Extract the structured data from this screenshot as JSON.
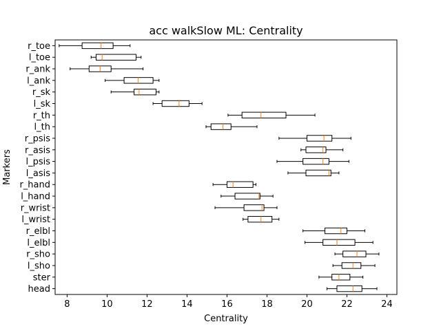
{
  "chart_data": {
    "type": "boxplot",
    "orientation": "horizontal",
    "title": "acc walkSlow ML: Centrality",
    "xlabel": "Centrality",
    "ylabel": "Markers",
    "xlim": [
      7.4,
      24.5
    ],
    "xticks": [
      8,
      10,
      12,
      14,
      16,
      18,
      20,
      22,
      24
    ],
    "grid": false,
    "colors": {
      "box": "#000000",
      "median": "#ff7f0e",
      "whisker": "#000000"
    },
    "categories": [
      "head",
      "ster",
      "l_sho",
      "r_sho",
      "l_elbl",
      "r_elbl",
      "l_wrist",
      "r_wrist",
      "l_hand",
      "r_hand",
      "l_asis",
      "l_psis",
      "r_asis",
      "r_psis",
      "l_th",
      "r_th",
      "l_sk",
      "r_sk",
      "l_ank",
      "r_ank",
      "l_toe",
      "r_toe"
    ],
    "boxes": [
      {
        "label": "head",
        "whislo": 21.0,
        "q1": 21.5,
        "med": 22.3,
        "q3": 22.75,
        "whishi": 23.5
      },
      {
        "label": "ster",
        "whislo": 20.6,
        "q1": 21.25,
        "med": 21.6,
        "q3": 22.15,
        "whishi": 22.8
      },
      {
        "label": "l_sho",
        "whislo": 21.3,
        "q1": 21.75,
        "med": 22.3,
        "q3": 22.7,
        "whishi": 23.4
      },
      {
        "label": "r_sho",
        "whislo": 21.4,
        "q1": 21.8,
        "med": 22.5,
        "q3": 22.95,
        "whishi": 23.6
      },
      {
        "label": "l_elbl",
        "whislo": 19.9,
        "q1": 20.8,
        "med": 21.5,
        "q3": 22.4,
        "whishi": 23.3
      },
      {
        "label": "r_elbl",
        "whislo": 19.8,
        "q1": 20.9,
        "med": 21.7,
        "q3": 22.0,
        "whishi": 22.9
      },
      {
        "label": "l_wrist",
        "whislo": 16.8,
        "q1": 17.05,
        "med": 17.7,
        "q3": 18.25,
        "whishi": 18.6
      },
      {
        "label": "r_wrist",
        "whislo": 15.4,
        "q1": 16.85,
        "med": 17.75,
        "q3": 17.85,
        "whishi": 18.5
      },
      {
        "label": "l_hand",
        "whislo": 15.7,
        "q1": 16.4,
        "med": 17.6,
        "q3": 17.65,
        "whishi": 18.3
      },
      {
        "label": "r_hand",
        "whislo": 15.3,
        "q1": 16.0,
        "med": 16.3,
        "q3": 17.3,
        "whishi": 17.45
      },
      {
        "label": "l_asis",
        "whislo": 19.05,
        "q1": 19.95,
        "med": 21.1,
        "q3": 21.2,
        "whishi": 21.6
      },
      {
        "label": "l_psis",
        "whislo": 18.5,
        "q1": 19.8,
        "med": 20.8,
        "q3": 21.1,
        "whishi": 22.1
      },
      {
        "label": "r_asis",
        "whislo": 19.7,
        "q1": 19.95,
        "med": 20.8,
        "q3": 20.95,
        "whishi": 21.8
      },
      {
        "label": "r_psis",
        "whislo": 18.6,
        "q1": 20.0,
        "med": 20.85,
        "q3": 21.25,
        "whishi": 22.2
      },
      {
        "label": "l_th",
        "whislo": 14.95,
        "q1": 15.2,
        "med": 15.8,
        "q3": 16.2,
        "whishi": 17.5
      },
      {
        "label": "r_th",
        "whislo": 16.05,
        "q1": 16.75,
        "med": 17.7,
        "q3": 18.95,
        "whishi": 20.4
      },
      {
        "label": "l_sk",
        "whislo": 12.3,
        "q1": 12.75,
        "med": 13.6,
        "q3": 14.1,
        "whishi": 14.75
      },
      {
        "label": "r_sk",
        "whislo": 10.2,
        "q1": 11.35,
        "med": 11.6,
        "q3": 12.45,
        "whishi": 12.6
      },
      {
        "label": "l_ank",
        "whislo": 9.9,
        "q1": 10.85,
        "med": 11.55,
        "q3": 12.3,
        "whishi": 12.6
      },
      {
        "label": "r_ank",
        "whislo": 8.15,
        "q1": 9.1,
        "med": 9.65,
        "q3": 10.2,
        "whishi": 11.8
      },
      {
        "label": "l_toe",
        "whislo": 9.2,
        "q1": 9.45,
        "med": 9.75,
        "q3": 11.45,
        "whishi": 11.7
      },
      {
        "label": "r_toe",
        "whislo": 7.6,
        "q1": 8.75,
        "med": 9.7,
        "q3": 10.3,
        "whishi": 11.15
      }
    ]
  }
}
